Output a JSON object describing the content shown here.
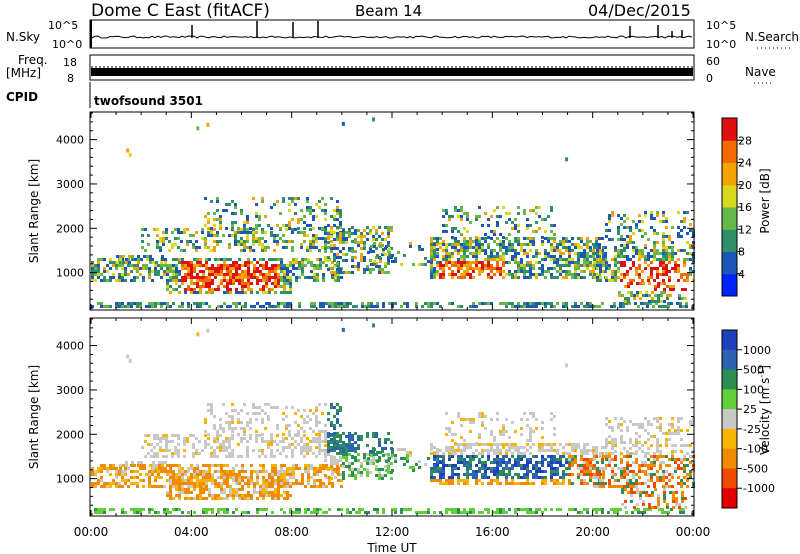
{
  "header": {
    "title": "Dome C East (fitACF)",
    "beam": "Beam 14",
    "date": "04/Dec/2015"
  },
  "strips": {
    "nsky_label": "N.Sky",
    "nsky_ticks": [
      "10^5",
      "10^0"
    ],
    "nsearch_label": "N.Search",
    "nsearch_ticks": [
      "10^5",
      "10^0"
    ],
    "freq_label": "Freq.",
    "freq_unit": "[MHz]",
    "freq_ticks": [
      "18",
      "8"
    ],
    "nave_label": "Nave",
    "nave_ticks": [
      "60",
      "0"
    ],
    "cpid_label": "CPID",
    "cpid_value": "twofsound 3501"
  },
  "chart_data": [
    {
      "type": "heatmap",
      "panel": "power",
      "ylabel": "Slant Range [km]",
      "yticks": [
        1000,
        2000,
        3000,
        4000
      ],
      "ylim": [
        180,
        4600
      ],
      "xlim": [
        0,
        24
      ],
      "colorbar_label": "Power [dB]",
      "colorbar_ticks": [
        4,
        8,
        12,
        16,
        20,
        24,
        28
      ],
      "colors": [
        "#0022ff",
        "#1d58b8",
        "#2f8f68",
        "#66b84a",
        "#d8d81f",
        "#f2a400",
        "#f56a00",
        "#e01010"
      ]
    },
    {
      "type": "heatmap",
      "panel": "velocity",
      "ylabel": "Slant Range [km]",
      "yticks": [
        1000,
        2000,
        3000,
        4000
      ],
      "ylim": [
        180,
        4600
      ],
      "xlim": [
        0,
        24
      ],
      "xlabel": "Time UT",
      "xticks": [
        "00:00",
        "04:00",
        "08:00",
        "12:00",
        "16:00",
        "20:00",
        "00:00"
      ],
      "colorbar_label": "Velocity [m s",
      "colorbar_unit_sup": "-1",
      "colorbar_ticks": [
        "1000",
        "500",
        "100",
        "25",
        "-25",
        "-100",
        "-500",
        "-1000"
      ],
      "colors": [
        "#1f3fbf",
        "#2c64b0",
        "#2e8f52",
        "#5fd03a",
        "#c8c8c8",
        "#f5b400",
        "#f08a00",
        "#ef4a00",
        "#e00000"
      ]
    }
  ]
}
